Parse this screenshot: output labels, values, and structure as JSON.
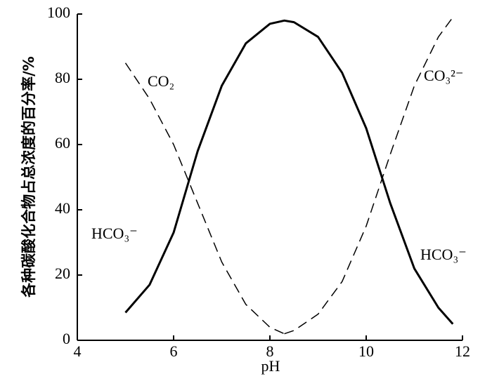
{
  "chart_data": {
    "type": "line",
    "xlabel": "pH",
    "ylabel": "各种碳酸化合物占总浓度的百分率/%",
    "xlim": [
      4,
      12
    ],
    "xticks": [
      4,
      6,
      8,
      10,
      12
    ],
    "ylim": [
      0,
      100
    ],
    "yticks": [
      0,
      20,
      40,
      60,
      80,
      100
    ],
    "series": [
      {
        "name": "CO₂",
        "color": "#000000",
        "style": "dashed",
        "x": [
          5,
          5.5,
          6,
          6.5,
          7,
          7.5,
          8,
          8.3
        ],
        "values": [
          85,
          74,
          60,
          42,
          24,
          11,
          4,
          2
        ]
      },
      {
        "name": "CO₃²⁻",
        "color": "#000000",
        "style": "dashed",
        "x": [
          8.3,
          8.5,
          9,
          9.5,
          10,
          10.5,
          11,
          11.5,
          11.8
        ],
        "values": [
          2,
          3,
          8,
          18,
          35,
          57,
          78,
          93,
          99
        ]
      },
      {
        "name": "HCO₃⁻",
        "color": "#000000",
        "style": "solid",
        "x": [
          5,
          5.5,
          6,
          6.5,
          7,
          7.5,
          8,
          8.3,
          8.5,
          9,
          9.5,
          10,
          10.5,
          11,
          11.5,
          11.8
        ],
        "values": [
          8.5,
          17,
          33,
          58,
          78,
          91,
          97,
          98,
          97.5,
          93,
          82,
          65,
          42,
          22,
          10,
          5
        ]
      }
    ]
  }
}
